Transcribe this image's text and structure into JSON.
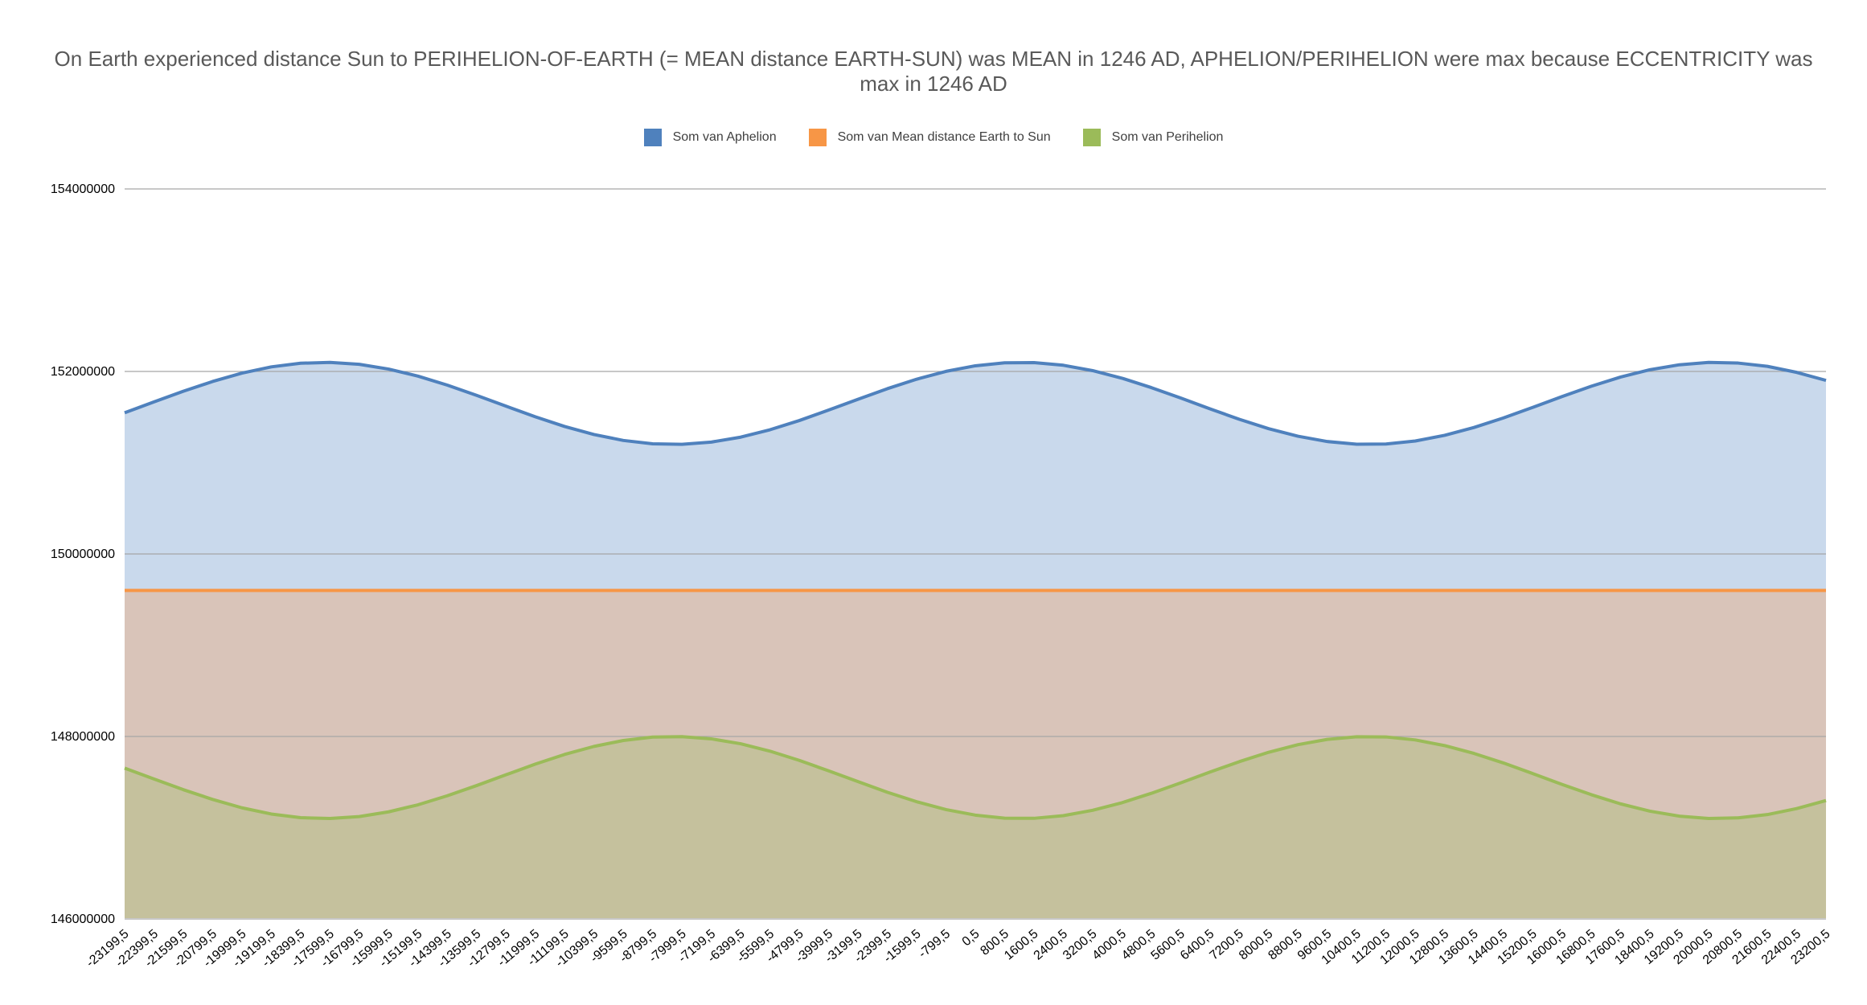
{
  "chart_data": {
    "type": "area",
    "title": "On Earth experienced distance Sun to PERIHELION-OF-EARTH (= MEAN distance EARTH-SUN) was MEAN in 1246 AD, APHELION/PERIHELION were max because ECCENTRICITY was max in 1246 AD",
    "xlabel": "",
    "ylabel": "",
    "ylim": [
      146000000,
      154000000
    ],
    "yticks": [
      "146000000",
      "148000000",
      "150000000",
      "152000000",
      "154000000"
    ],
    "grid": true,
    "legend_position": "top",
    "categories": [
      "-23199,5",
      "-22399,5",
      "-21599,5",
      "-20799,5",
      "-19999,5",
      "-19199,5",
      "-18399,5",
      "-17599,5",
      "-16799,5",
      "-15999,5",
      "-15199,5",
      "-14399,5",
      "-13599,5",
      "-12799,5",
      "-11999,5",
      "-11199,5",
      "-10399,5",
      "-9599,5",
      "-8799,5",
      "-7999,5",
      "-7199,5",
      "-6399,5",
      "-5599,5",
      "-4799,5",
      "-3999,5",
      "-3199,5",
      "-2399,5",
      "-1599,5",
      "-799,5",
      "0,5",
      "800,5",
      "1600,5",
      "2400,5",
      "3200,5",
      "4000,5",
      "4800,5",
      "5600,5",
      "6400,5",
      "7200,5",
      "8000,5",
      "8800,5",
      "9600,5",
      "10400,5",
      "11200,5",
      "12000,5",
      "12800,5",
      "13600,5",
      "14400,5",
      "15200,5",
      "16000,5",
      "16800,5",
      "17600,5",
      "18400,5",
      "19200,5",
      "20000,5",
      "20800,5",
      "21600,5",
      "22400,5",
      "23200,5"
    ],
    "series": [
      {
        "name": "Som van Aphelion",
        "color": "#4f81bd",
        "fill": "#c9d9ec",
        "values": [
          151547000,
          151666000,
          151783000,
          151890000,
          151982000,
          152050000,
          152090000,
          152099000,
          152078000,
          152026000,
          151949000,
          151850000,
          151738000,
          151620000,
          151503000,
          151397000,
          151309000,
          151244000,
          151207000,
          151202000,
          151226000,
          151280000,
          151361000,
          151462000,
          151577000,
          151695000,
          151811000,
          151915000,
          152001000,
          152062000,
          152095000,
          152097000,
          152068000,
          152009000,
          151926000,
          151823000,
          151709000,
          151590000,
          151476000,
          151373000,
          151290000,
          151232000,
          151203000,
          151205000,
          151238000,
          151300000,
          151386000,
          151490000,
          151606000,
          151725000,
          151838000,
          151939000,
          152019000,
          152073000,
          152099000,
          152092000,
          152056000,
          151990000,
          151902000
        ]
      },
      {
        "name": "Som van Mean distance Earth to Sun",
        "color": "#f79646",
        "fill": "#d9c4b9",
        "values": [
          149600000,
          149600000,
          149600000,
          149600000,
          149600000,
          149600000,
          149600000,
          149600000,
          149600000,
          149600000,
          149600000,
          149600000,
          149600000,
          149600000,
          149600000,
          149600000,
          149600000,
          149600000,
          149600000,
          149600000,
          149600000,
          149600000,
          149600000,
          149600000,
          149600000,
          149600000,
          149600000,
          149600000,
          149600000,
          149600000,
          149600000,
          149600000,
          149600000,
          149600000,
          149600000,
          149600000,
          149600000,
          149600000,
          149600000,
          149600000,
          149600000,
          149600000,
          149600000,
          149600000,
          149600000,
          149600000,
          149600000,
          149600000,
          149600000,
          149600000,
          149600000,
          149600000,
          149600000,
          149600000,
          149600000,
          149600000,
          149600000,
          149600000,
          149600000
        ]
      },
      {
        "name": "Som van Perihelion",
        "color": "#9bbb59",
        "fill": "#c5c19d",
        "values": [
          147653000,
          147534000,
          147417000,
          147310000,
          147218000,
          147150000,
          147110000,
          147101000,
          147122000,
          147174000,
          147251000,
          147350000,
          147462000,
          147580000,
          147697000,
          147803000,
          147891000,
          147956000,
          147993000,
          147998000,
          147974000,
          147920000,
          147839000,
          147738000,
          147623000,
          147505000,
          147389000,
          147285000,
          147199000,
          147138000,
          147105000,
          147103000,
          147132000,
          147191000,
          147274000,
          147377000,
          147491000,
          147610000,
          147724000,
          147827000,
          147910000,
          147968000,
          147997000,
          147995000,
          147962000,
          147900000,
          147814000,
          147710000,
          147594000,
          147475000,
          147362000,
          147261000,
          147181000,
          147127000,
          147101000,
          147108000,
          147144000,
          147210000,
          147298000
        ]
      }
    ]
  }
}
